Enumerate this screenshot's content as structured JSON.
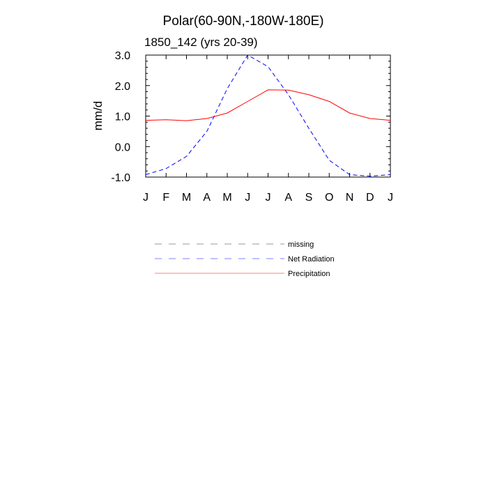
{
  "chart_data": {
    "type": "line",
    "title": "Polar(60-90N,-180W-180E)",
    "subtitle": "1850_142 (yrs 20-39)",
    "ylabel": "mm/d",
    "xlabel": "",
    "categories": [
      "J",
      "F",
      "M",
      "A",
      "M",
      "J",
      "J",
      "A",
      "S",
      "O",
      "N",
      "D",
      "J"
    ],
    "ylim": [
      -1.0,
      3.0
    ],
    "yticks": [
      -1.0,
      0.0,
      1.0,
      2.0,
      3.0
    ],
    "ytick_labels": [
      "-1.0",
      "0.0",
      "1.0",
      "2.0",
      "3.0"
    ],
    "grid": false,
    "legend_position": "below",
    "series": [
      {
        "name": "Net Radiation",
        "color": "#0000ff",
        "style": "dashed",
        "values": [
          -0.92,
          -0.72,
          -0.32,
          0.5,
          1.9,
          3.0,
          2.62,
          1.7,
          0.6,
          -0.45,
          -0.92,
          -0.97,
          -0.92
        ]
      },
      {
        "name": "Precipitation",
        "color": "#ff0000",
        "style": "solid",
        "values": [
          0.86,
          0.88,
          0.85,
          0.92,
          1.1,
          1.48,
          1.86,
          1.85,
          1.7,
          1.48,
          1.1,
          0.92,
          0.86
        ]
      }
    ],
    "legend": [
      {
        "label": "missing",
        "color": "#999999",
        "style": "dashed"
      },
      {
        "label": "Net Radiation",
        "color": "#8080ff",
        "style": "dashed"
      },
      {
        "label": "Precipitation",
        "color": "#ff8080",
        "style": "solid"
      }
    ]
  }
}
